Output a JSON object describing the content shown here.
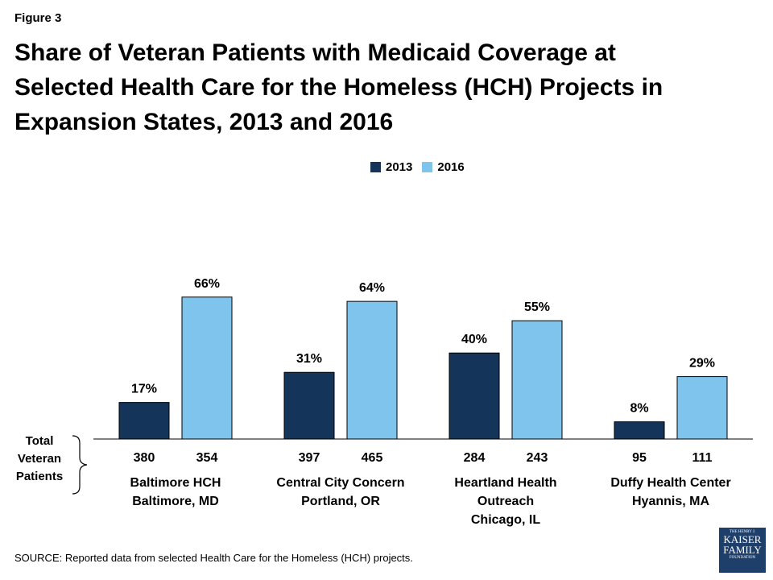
{
  "figure_label": "Figure 3",
  "title_lines": [
    "Share of Veteran Patients with Medicaid Coverage at",
    "Selected Health Care for the Homeless (HCH) Projects in",
    "Expansion States, 2013 and 2016"
  ],
  "total_label_lines": [
    "Total",
    "Veteran",
    "Patients"
  ],
  "source": "SOURCE: Reported data from  selected Health Care for the Homeless (HCH) projects.",
  "logo_lines": [
    "THE HENRY J.",
    "KAISER",
    "FAMILY",
    "FOUNDATION"
  ],
  "colors": {
    "series_2013": "#14345a",
    "series_2016": "#7fc4ec"
  },
  "chart_data": {
    "type": "bar",
    "title": "Share of Veteran Patients with Medicaid Coverage at Selected Health Care for the Homeless (HCH) Projects in Expansion States, 2013 and 2016",
    "categories": [
      [
        "Baltimore HCH",
        "Baltimore, MD"
      ],
      [
        "Central City Concern",
        "Portland, OR"
      ],
      [
        "Heartland Health",
        "Outreach",
        "Chicago, IL"
      ],
      [
        "Duffy Health Center",
        "Hyannis, MA"
      ]
    ],
    "series": [
      {
        "name": "2013",
        "values": [
          17,
          31,
          40,
          8
        ],
        "labels": [
          "17%",
          "31%",
          "40%",
          "8%"
        ],
        "totals": [
          "380",
          "397",
          "284",
          "95"
        ]
      },
      {
        "name": "2016",
        "values": [
          66,
          64,
          55,
          29
        ],
        "labels": [
          "66%",
          "64%",
          "55%",
          "29%"
        ],
        "totals": [
          "354",
          "465",
          "243",
          "111"
        ]
      }
    ],
    "ylim": [
      0,
      100
    ],
    "xlabel": "",
    "ylabel": "",
    "grid": false,
    "legend": "top-center"
  }
}
